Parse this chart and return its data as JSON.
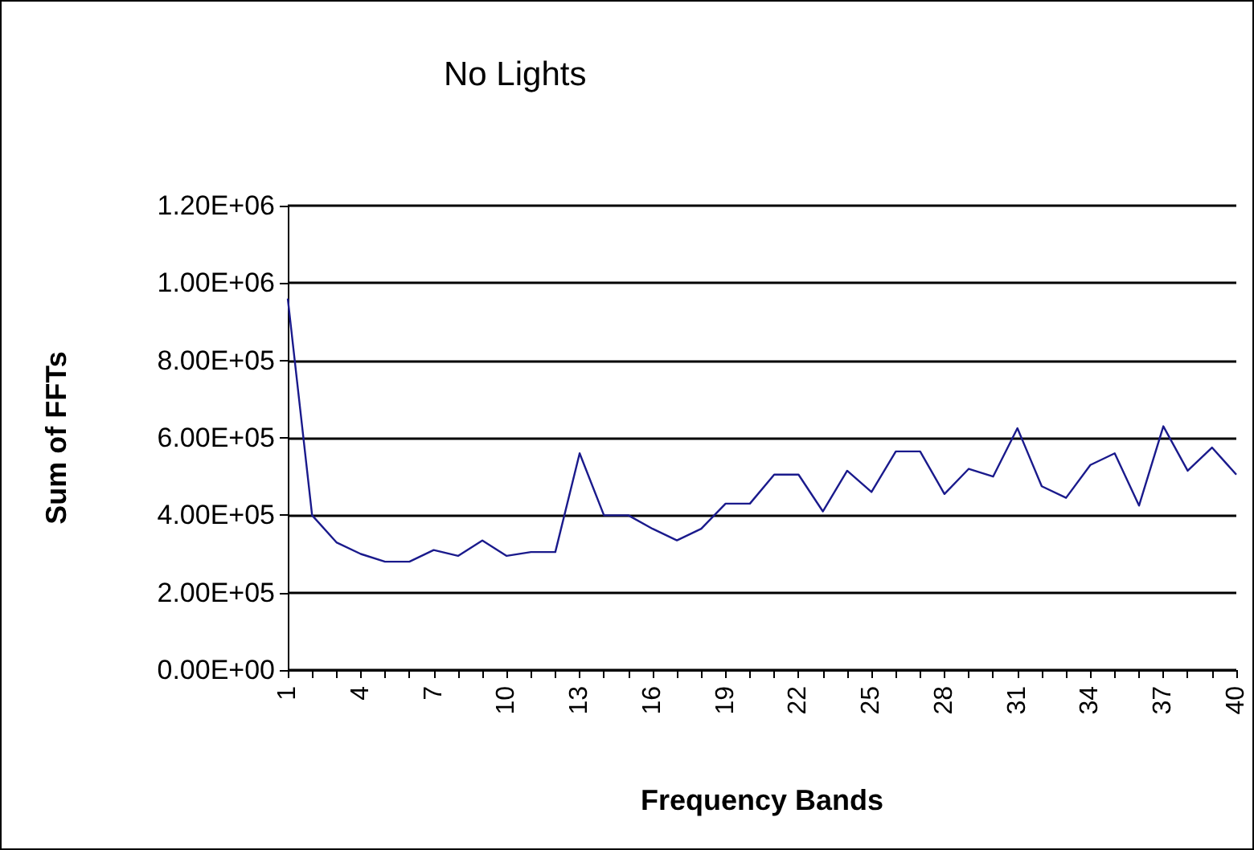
{
  "chart_data": {
    "type": "line",
    "title": "No Lights",
    "xlabel": "Frequency Bands",
    "ylabel": "Sum of FFTs",
    "categories": [
      "1",
      null,
      null,
      "4",
      null,
      null,
      "7",
      null,
      null,
      "10",
      null,
      null,
      "13",
      null,
      null,
      "16",
      null,
      null,
      "19",
      null,
      null,
      "22",
      null,
      null,
      "25",
      null,
      null,
      "28",
      null,
      null,
      "31",
      null,
      null,
      "34",
      null,
      null,
      "37",
      null,
      null,
      "40"
    ],
    "series": [
      {
        "color": "#1a1a8c",
        "values": [
          960000,
          400000,
          330000,
          300000,
          280000,
          280000,
          310000,
          295000,
          335000,
          295000,
          305000,
          305000,
          560000,
          400000,
          400000,
          365000,
          335000,
          365000,
          430000,
          430000,
          505000,
          505000,
          410000,
          515000,
          460000,
          565000,
          565000,
          455000,
          520000,
          500000,
          625000,
          475000,
          445000,
          530000,
          560000,
          425000,
          630000,
          515000,
          575000,
          505000
        ]
      }
    ],
    "ylim": [
      0,
      1200000
    ],
    "yticks": [
      {
        "value": 0,
        "label": "0.00E+00"
      },
      {
        "value": 200000,
        "label": "2.00E+05"
      },
      {
        "value": 400000,
        "label": "4.00E+05"
      },
      {
        "value": 600000,
        "label": "6.00E+05"
      },
      {
        "value": 800000,
        "label": "8.00E+05"
      },
      {
        "value": 1000000,
        "label": "1.00E+06"
      },
      {
        "value": 1200000,
        "label": "1.20E+06"
      }
    ],
    "grid": "y",
    "marker": "none",
    "line_style": "solid"
  }
}
